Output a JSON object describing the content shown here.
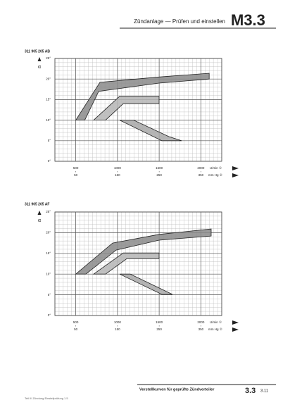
{
  "header": {
    "title": "Zündanlage — Prüfen und einstellen",
    "section": "M3.3"
  },
  "chart_data": [
    {
      "type": "band",
      "title": "311 905 205 AB",
      "y_label": "α",
      "xlim": [
        250,
        2250
      ],
      "xticks": [
        500,
        1000,
        1500,
        2000
      ],
      "x_label": "U/min ①",
      "x2lim": [
        0,
        400
      ],
      "x2ticks": [
        50,
        150,
        250,
        350
      ],
      "x2_label": "mm Hg ②",
      "ylim": [
        0,
        25
      ],
      "yticks": [
        {
          "value": 0,
          "label": "0°"
        },
        {
          "value": 5,
          "label": "5°"
        },
        {
          "value": 10,
          "label": "10°"
        },
        {
          "value": 15,
          "label": "15°"
        },
        {
          "value": 20,
          "label": "20°"
        },
        {
          "value": 25,
          "label": "25°"
        }
      ],
      "grid": true,
      "series": [
        {
          "color": "#8a8a8a",
          "x": [
            500,
            790,
            1500,
            2100,
            2100,
            1500,
            775,
            608
          ],
          "y": [
            10,
            19.2,
            20.5,
            21.4,
            20,
            19,
            17,
            10
          ]
        },
        {
          "color": "#b5b5b5",
          "x": [
            714,
            1026,
            1499,
            1499,
            1069,
            858
          ],
          "y": [
            10,
            15.8,
            15.8,
            14,
            14,
            10
          ]
        },
        {
          "color": "#a8a8a8",
          "x": [
            1026,
            1533,
            1769,
            1617,
            1195
          ],
          "y": [
            10,
            5,
            5,
            6,
            10
          ]
        }
      ]
    },
    {
      "type": "band",
      "title": "311 905 205 AF",
      "y_label": "α",
      "xlim": [
        250,
        2250
      ],
      "xticks": [
        500,
        1000,
        1500,
        2000
      ],
      "x_label": "U/min ①",
      "x2lim": [
        0,
        400
      ],
      "x2ticks": [
        50,
        150,
        250,
        350
      ],
      "x2_label": "mm Hg ②",
      "ylim": [
        0,
        25
      ],
      "yticks": [
        {
          "value": 0,
          "label": "0°"
        },
        {
          "value": 5,
          "label": "5°"
        },
        {
          "value": 10,
          "label": "10°"
        },
        {
          "value": 15,
          "label": "15°"
        },
        {
          "value": 20,
          "label": "20°"
        },
        {
          "value": 25,
          "label": "25°"
        }
      ],
      "grid": true,
      "series": [
        {
          "color": "#8a8a8a",
          "x": [
            500,
            942,
            1500,
            2123,
            2123,
            1500,
            984,
            621
          ],
          "y": [
            10,
            17.5,
            19.6,
            20.9,
            19.2,
            18.2,
            15.8,
            10
          ]
        },
        {
          "color": "#b5b5b5",
          "x": [
            714,
            1069,
            1499,
            1499,
            1111,
            858
          ],
          "y": [
            10,
            15.1,
            15.1,
            13.7,
            13.7,
            10
          ]
        },
        {
          "color": "#a8a8a8",
          "x": [
            1026,
            1533,
            1659,
            1153
          ],
          "y": [
            10,
            5.1,
            5.1,
            10
          ]
        }
      ]
    }
  ],
  "footer": {
    "caption": "Verstellkurven für geprüfte Zündverteiler",
    "section": "3.3",
    "page": "3.11",
    "note": "Teil III  Zündung  Einstellprüfung  1.5"
  }
}
